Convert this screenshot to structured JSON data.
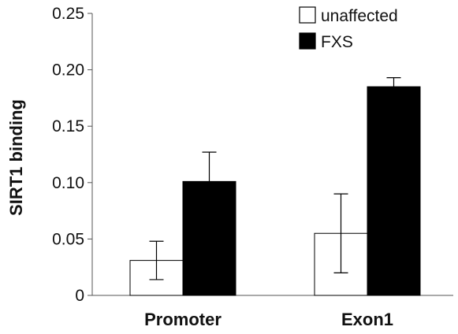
{
  "chart_data": {
    "type": "bar",
    "title": "",
    "xlabel": "",
    "ylabel": "SIRT1 binding",
    "categories": [
      "Promoter",
      "Exon1"
    ],
    "series": [
      {
        "name": "unaffected",
        "color": "#ffffff",
        "values": [
          0.031,
          0.055
        ],
        "error": [
          0.017,
          0.035
        ]
      },
      {
        "name": "FXS",
        "color": "#000000",
        "values": [
          0.101,
          0.185
        ],
        "error": [
          0.026,
          0.008
        ]
      }
    ],
    "ylim": [
      0,
      0.25
    ],
    "yticks": [
      "0",
      "0.05",
      "0.10",
      "0.15",
      "0.20",
      "0.25"
    ],
    "grid": false,
    "legend_position": "top-right"
  }
}
